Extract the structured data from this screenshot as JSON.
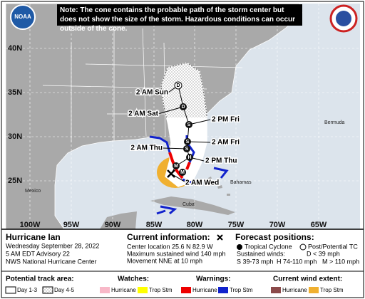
{
  "logo": "NOAA",
  "note": "Note: The cone contains the probable path of the storm center but does not show the size of the storm. Hazardous conditions can occur outside of the cone.",
  "map": {
    "lat_labels": [
      "40N",
      "35N",
      "30N",
      "25N"
    ],
    "lon_labels": [
      "100W",
      "95W",
      "90W",
      "85W",
      "80W",
      "75W",
      "70W",
      "65W"
    ],
    "places": [
      "Mexico",
      "Cuba",
      "Bahamas",
      "Bermuda"
    ],
    "track_labels": [
      "2 AM Sun",
      "2 AM Sat",
      "2 PM Fri",
      "2 AM Fri",
      "2 AM Thu",
      "2 PM Thu",
      "2 AM Wed"
    ],
    "points": [
      "D",
      "D",
      "S",
      "S",
      "S",
      "H",
      "M",
      "M"
    ]
  },
  "storm": {
    "name": "Hurricane Ian",
    "date": "Wednesday September 28, 2022",
    "advisory": "5 AM EDT Advisory 22",
    "center": "NWS National Hurricane Center"
  },
  "current": {
    "title": "Current information:",
    "location": "Center location 25.6 N 82.9 W",
    "wind": "Maximum sustained wind 140 mph",
    "movement": "Movement NNE at 10 mph"
  },
  "forecast": {
    "title": "Forecast positions:",
    "tc": "Tropical Cyclone",
    "post": "Post/Potential TC",
    "winds": "Sustained winds:",
    "d": "D < 39 mph",
    "s": "S 39-73 mph",
    "h": "H 74-110 mph",
    "m": "M > 110 mph"
  },
  "legend": {
    "track": {
      "title": "Potential track area:",
      "day13": "Day 1-3",
      "day45": "Day 4-5"
    },
    "watches": {
      "title": "Watches:",
      "hurricane": "Hurricane",
      "trop": "Trop Stm"
    },
    "warnings": {
      "title": "Warnings:",
      "hurricane": "Hurricane",
      "trop": "Trop Stm"
    },
    "wind": {
      "title": "Current wind extent:",
      "hurricane": "Hurricane",
      "trop": "Trop Stm"
    }
  }
}
